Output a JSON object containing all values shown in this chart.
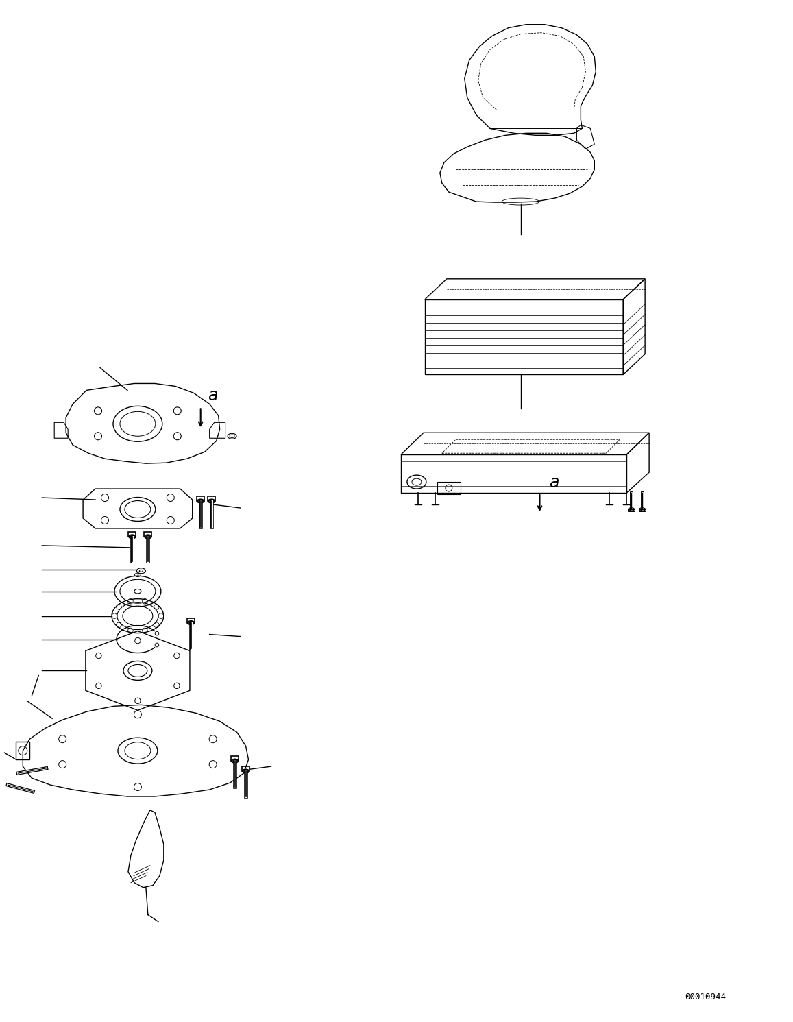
{
  "bg_color": "#ffffff",
  "line_color": "#000000",
  "fig_width": 11.57,
  "fig_height": 14.91,
  "dpi": 100,
  "part_number": "00010944"
}
